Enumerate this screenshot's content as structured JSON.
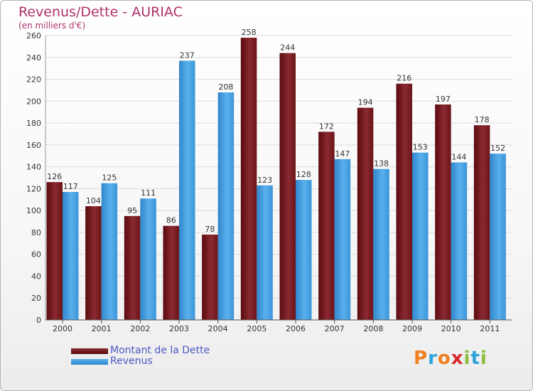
{
  "chart_data": {
    "type": "bar",
    "title": "Revenus/Dette - AURIAC",
    "subtitle": "(en milliers d'€)",
    "categories": [
      "2000",
      "2001",
      "2002",
      "2003",
      "2004",
      "2005",
      "2006",
      "2007",
      "2008",
      "2009",
      "2010",
      "2011"
    ],
    "series": [
      {
        "name": "Montant de la Dette",
        "values": [
          126,
          104,
          95,
          86,
          78,
          258,
          244,
          172,
          194,
          216,
          197,
          178
        ],
        "color": "#6b0f14"
      },
      {
        "name": "Revenus",
        "values": [
          117,
          125,
          111,
          237,
          208,
          123,
          128,
          147,
          138,
          153,
          144,
          152
        ],
        "color": "#3d98dd"
      }
    ],
    "ylim": [
      0,
      260
    ],
    "yticks": [
      0,
      20,
      40,
      60,
      80,
      100,
      120,
      140,
      160,
      180,
      200,
      220,
      240,
      260
    ],
    "grid": true,
    "legend_position": "bottom-left"
  },
  "logo": {
    "letters": [
      "P",
      "r",
      "o",
      "x",
      "i",
      "t",
      "i"
    ],
    "colors": [
      "#f07f1d",
      "#2aa4d9",
      "#f07f1d",
      "#d8282b",
      "#8cbf3f",
      "#2aa4d9",
      "#8cbf3f"
    ]
  }
}
